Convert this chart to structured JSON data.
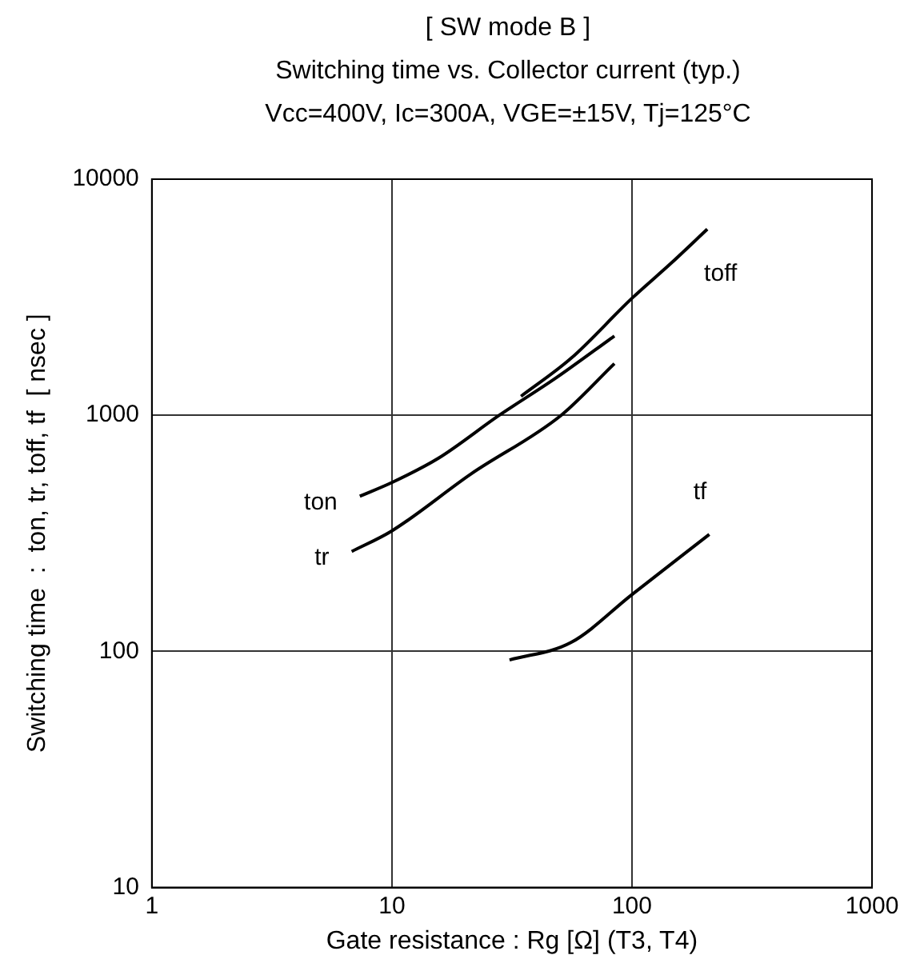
{
  "chart_data": {
    "type": "line",
    "title": "[ SW mode B ]",
    "subtitle": "Switching time  vs.  Collector current  (typ.)",
    "annotations": [
      "Vcc=400V, Ic=300A, VGE=±15V, Tj=125°C"
    ],
    "xlabel": "Gate resistance : Rg [Ω] (T3, T4)",
    "ylabel": "Switching time  :  ton, tr, toff, tf  [ nsec ]",
    "log": "xy",
    "xlim": [
      1,
      1000
    ],
    "xticks": [
      1,
      10,
      100,
      1000
    ],
    "ylim": [
      10,
      10000
    ],
    "yticks": [
      10,
      100,
      1000,
      10000
    ],
    "grid": true,
    "legend": false,
    "marker": "none",
    "line_style": "solid",
    "series": [
      {
        "name": "toff",
        "color": "#000000",
        "x": [
          34.5,
          55.7,
          100,
          145,
          206
        ],
        "values": [
          1203,
          1741,
          3130,
          4390,
          6140
        ]
      },
      {
        "name": "ton",
        "color": "#000000",
        "x": [
          7.35,
          10,
          15.6,
          28,
          47.5,
          84.5
        ],
        "values": [
          454,
          519,
          657,
          1000,
          1423,
          2167
        ]
      },
      {
        "name": "tr",
        "color": "#000000",
        "x": [
          6.8,
          10,
          21.4,
          50.7,
          84.5
        ],
        "values": [
          265,
          324,
          565,
          1000,
          1655
        ]
      },
      {
        "name": "tf",
        "color": "#000000",
        "x": [
          30.9,
          55.7,
          100,
          210
        ],
        "values": [
          92,
          109,
          174,
          313
        ]
      }
    ]
  }
}
